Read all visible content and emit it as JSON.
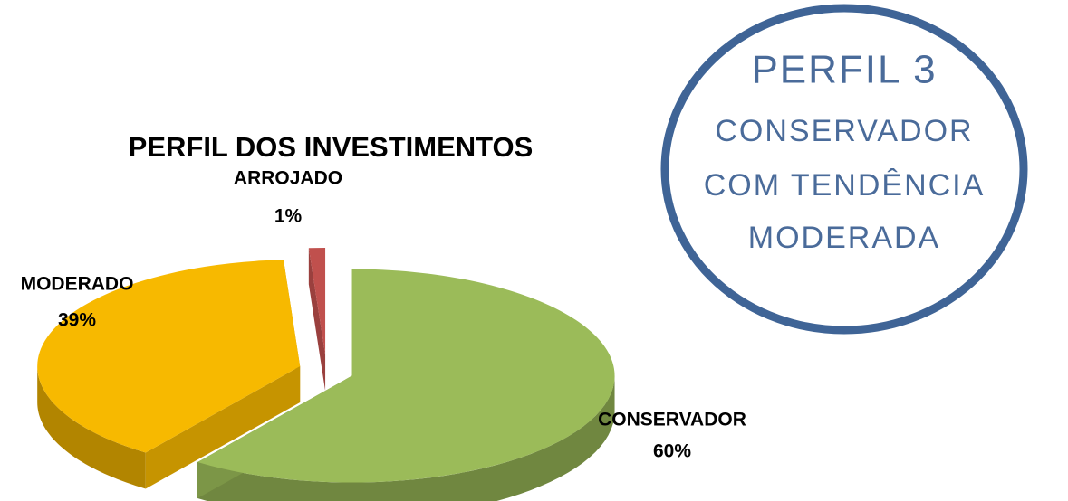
{
  "chart_data": {
    "type": "pie",
    "title": "PERFIL DOS INVESTIMENTOS",
    "categories": [
      "CONSERVADOR",
      "MODERADO",
      "ARROJADO"
    ],
    "values": [
      60,
      39,
      1
    ],
    "value_labels": [
      "60%",
      "39%",
      "1%"
    ],
    "colors": [
      "#9bbb59",
      "#f7b900",
      "#c0504d"
    ],
    "annotation": [
      "PERFIL 3",
      "CONSERVADOR",
      "COM TENDÊNCIA",
      "MODERADA"
    ]
  }
}
